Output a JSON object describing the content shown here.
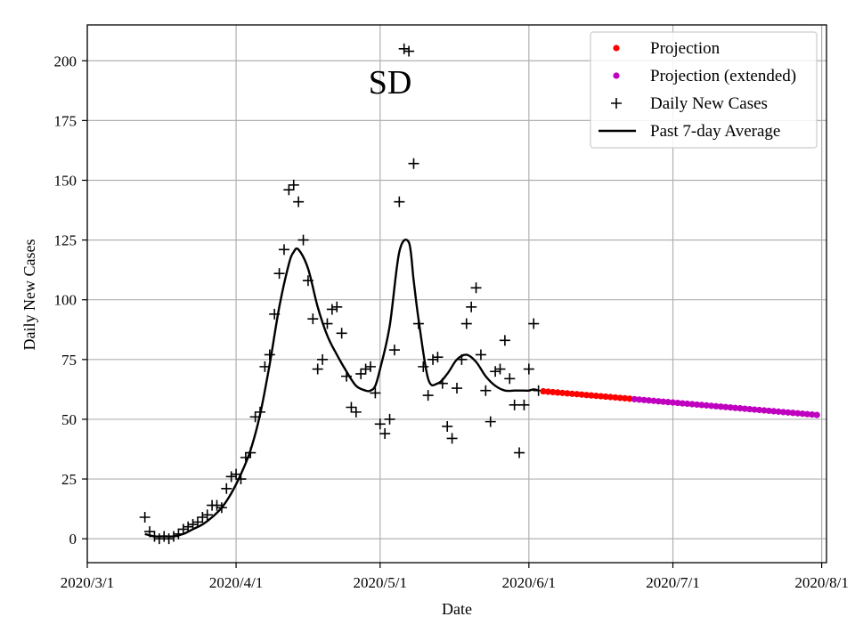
{
  "chart_data": {
    "type": "scatter",
    "title": "SD",
    "xlabel": "Date",
    "ylabel": "Daily New Cases",
    "x_range": [
      "2020-03-01",
      "2020-08-02"
    ],
    "ylim": [
      -10,
      215
    ],
    "grid": true,
    "legend_position": "top-right",
    "x_ticks": [
      {
        "date": "2020-03-01",
        "label": "2020/3/1"
      },
      {
        "date": "2020-04-01",
        "label": "2020/4/1"
      },
      {
        "date": "2020-05-01",
        "label": "2020/5/1"
      },
      {
        "date": "2020-06-01",
        "label": "2020/6/1"
      },
      {
        "date": "2020-07-01",
        "label": "2020/7/1"
      },
      {
        "date": "2020-08-01",
        "label": "2020/8/1"
      }
    ],
    "y_ticks": [
      {
        "value": 0,
        "label": "0"
      },
      {
        "value": 25,
        "label": "25"
      },
      {
        "value": 50,
        "label": "50"
      },
      {
        "value": 75,
        "label": "75"
      },
      {
        "value": 100,
        "label": "100"
      },
      {
        "value": 125,
        "label": "125"
      },
      {
        "value": 150,
        "label": "150"
      },
      {
        "value": 175,
        "label": "175"
      },
      {
        "value": 200,
        "label": "200"
      }
    ],
    "legend": [
      {
        "label": "Projection",
        "marker": "dot",
        "color": "#ff0000"
      },
      {
        "label": "Projection (extended)",
        "marker": "dot",
        "color": "#bf00bf"
      },
      {
        "label": "Daily New Cases",
        "marker": "plus",
        "color": "#000000"
      },
      {
        "label": "Past 7-day Average",
        "marker": "line",
        "color": "#000000"
      }
    ],
    "series": [
      {
        "name": "Daily New Cases",
        "marker": "plus",
        "color": "#000000",
        "x": [
          "2020-03-13",
          "2020-03-14",
          "2020-03-15",
          "2020-03-16",
          "2020-03-17",
          "2020-03-18",
          "2020-03-19",
          "2020-03-20",
          "2020-03-21",
          "2020-03-22",
          "2020-03-23",
          "2020-03-24",
          "2020-03-25",
          "2020-03-26",
          "2020-03-27",
          "2020-03-28",
          "2020-03-29",
          "2020-03-30",
          "2020-03-31",
          "2020-04-01",
          "2020-04-02",
          "2020-04-03",
          "2020-04-04",
          "2020-04-05",
          "2020-04-06",
          "2020-04-07",
          "2020-04-08",
          "2020-04-09",
          "2020-04-10",
          "2020-04-11",
          "2020-04-12",
          "2020-04-13",
          "2020-04-14",
          "2020-04-15",
          "2020-04-16",
          "2020-04-17",
          "2020-04-18",
          "2020-04-19",
          "2020-04-20",
          "2020-04-21",
          "2020-04-22",
          "2020-04-23",
          "2020-04-24",
          "2020-04-25",
          "2020-04-26",
          "2020-04-27",
          "2020-04-28",
          "2020-04-29",
          "2020-04-30",
          "2020-05-01",
          "2020-05-02",
          "2020-05-03",
          "2020-05-04",
          "2020-05-05",
          "2020-05-06",
          "2020-05-07",
          "2020-05-08",
          "2020-05-09",
          "2020-05-10",
          "2020-05-11",
          "2020-05-12",
          "2020-05-13",
          "2020-05-14",
          "2020-05-15",
          "2020-05-16",
          "2020-05-17",
          "2020-05-18",
          "2020-05-19",
          "2020-05-20",
          "2020-05-21",
          "2020-05-22",
          "2020-05-23",
          "2020-05-24",
          "2020-05-25",
          "2020-05-26",
          "2020-05-27",
          "2020-05-28",
          "2020-05-29",
          "2020-05-30",
          "2020-05-31",
          "2020-06-01",
          "2020-06-02",
          "2020-06-03"
        ],
        "y": [
          9,
          3,
          1,
          0,
          1,
          0,
          1,
          2,
          4,
          5,
          6,
          7,
          9,
          10,
          14,
          14,
          13,
          21,
          26,
          27,
          25,
          34,
          36,
          51,
          53,
          72,
          77,
          94,
          111,
          121,
          146,
          148,
          141,
          125,
          108,
          92,
          71,
          75,
          90,
          96,
          97,
          86,
          68,
          55,
          53,
          69,
          71,
          72,
          61,
          48,
          44,
          50,
          79,
          141,
          205,
          204,
          157,
          90,
          72,
          60,
          75,
          76,
          65,
          47,
          42,
          63,
          75,
          90,
          97,
          105,
          77,
          62,
          49,
          70,
          71,
          83,
          67,
          56,
          36,
          56,
          71,
          90,
          62
        ],
        "note": "values read from the scatter marks"
      },
      {
        "name": "Past 7-day Average",
        "marker": "line",
        "color": "#000000",
        "x": [
          "2020-03-13",
          "2020-03-15",
          "2020-03-17",
          "2020-03-19",
          "2020-03-21",
          "2020-03-23",
          "2020-03-25",
          "2020-03-27",
          "2020-03-29",
          "2020-03-31",
          "2020-04-02",
          "2020-04-04",
          "2020-04-06",
          "2020-04-08",
          "2020-04-10",
          "2020-04-12",
          "2020-04-13",
          "2020-04-14",
          "2020-04-16",
          "2020-04-18",
          "2020-04-20",
          "2020-04-22",
          "2020-04-24",
          "2020-04-26",
          "2020-04-28",
          "2020-04-29",
          "2020-04-30",
          "2020-05-01",
          "2020-05-03",
          "2020-05-05",
          "2020-05-07",
          "2020-05-08",
          "2020-05-09",
          "2020-05-11",
          "2020-05-13",
          "2020-05-15",
          "2020-05-17",
          "2020-05-19",
          "2020-05-21",
          "2020-05-23",
          "2020-05-25",
          "2020-05-27",
          "2020-05-29",
          "2020-05-31",
          "2020-06-01",
          "2020-06-02",
          "2020-06-03"
        ],
        "y": [
          2,
          1,
          1,
          1,
          2,
          4,
          6,
          9,
          13,
          19,
          27,
          37,
          52,
          73,
          97,
          115,
          120,
          121,
          113,
          97,
          85,
          77,
          70,
          64,
          62,
          62,
          64,
          71,
          89,
          120,
          124,
          108,
          92,
          67,
          65,
          69,
          75,
          77,
          74,
          68,
          64,
          62,
          62,
          62,
          62,
          62.5,
          62
        ]
      },
      {
        "name": "Projection",
        "marker": "dot",
        "color": "#ff0000",
        "x_start": "2020-06-04",
        "x_end": "2020-06-22",
        "y_start": 61.7,
        "y_end": 58.6
      },
      {
        "name": "Projection (extended)",
        "marker": "dot",
        "color": "#bf00bf",
        "x_start": "2020-06-23",
        "x_end": "2020-07-31",
        "y_start": 58.4,
        "y_end": 51.8
      }
    ]
  }
}
